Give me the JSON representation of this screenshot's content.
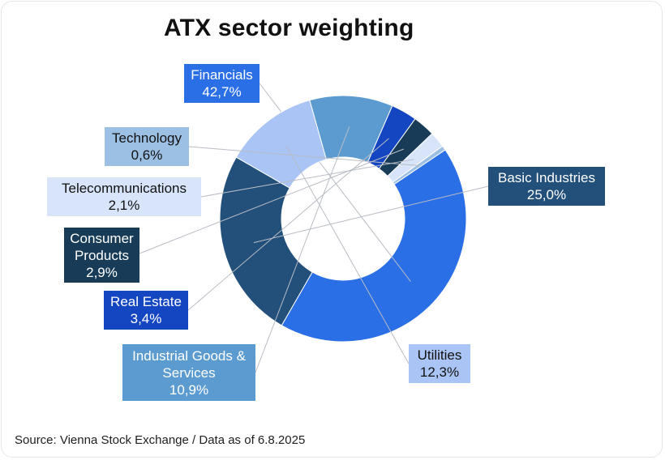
{
  "chart_data": {
    "type": "pie",
    "variant": "donut",
    "title": "ATX sector weighting",
    "source": "Source: Vienna Stock Exchange / Data as of 6.8.2025",
    "legend": "none",
    "slices": [
      {
        "name": "Financials",
        "value_label": "42,7%",
        "value": 42.7,
        "color": "#2a6fe6",
        "text_color": "#ffffff"
      },
      {
        "name": "Basic Industries",
        "value_label": "25,0%",
        "value": 25.0,
        "color": "#23507a",
        "text_color": "#ffffff"
      },
      {
        "name": "Utilities",
        "value_label": "12,3%",
        "value": 12.3,
        "color": "#a9c4f5",
        "text_color": "#111111"
      },
      {
        "name": "Industrial Goods & Services",
        "name_lines": [
          "Industrial Goods &",
          "Services"
        ],
        "value_label": "10,9%",
        "value": 10.9,
        "color": "#5b9bd0",
        "text_color": "#ffffff"
      },
      {
        "name": "Real Estate",
        "value_label": "3,4%",
        "value": 3.4,
        "color": "#1446c2",
        "text_color": "#ffffff"
      },
      {
        "name": "Consumer Products",
        "name_lines": [
          "Consumer",
          "Products"
        ],
        "value_label": "2,9%",
        "value": 2.9,
        "color": "#183c58",
        "text_color": "#ffffff"
      },
      {
        "name": "Telecommunications",
        "value_label": "2,1%",
        "value": 2.1,
        "color": "#d8e4fa",
        "text_color": "#111111"
      },
      {
        "name": "Technology",
        "value_label": "0,6%",
        "value": 0.6,
        "color": "#9cc0e3",
        "text_color": "#111111"
      }
    ]
  }
}
